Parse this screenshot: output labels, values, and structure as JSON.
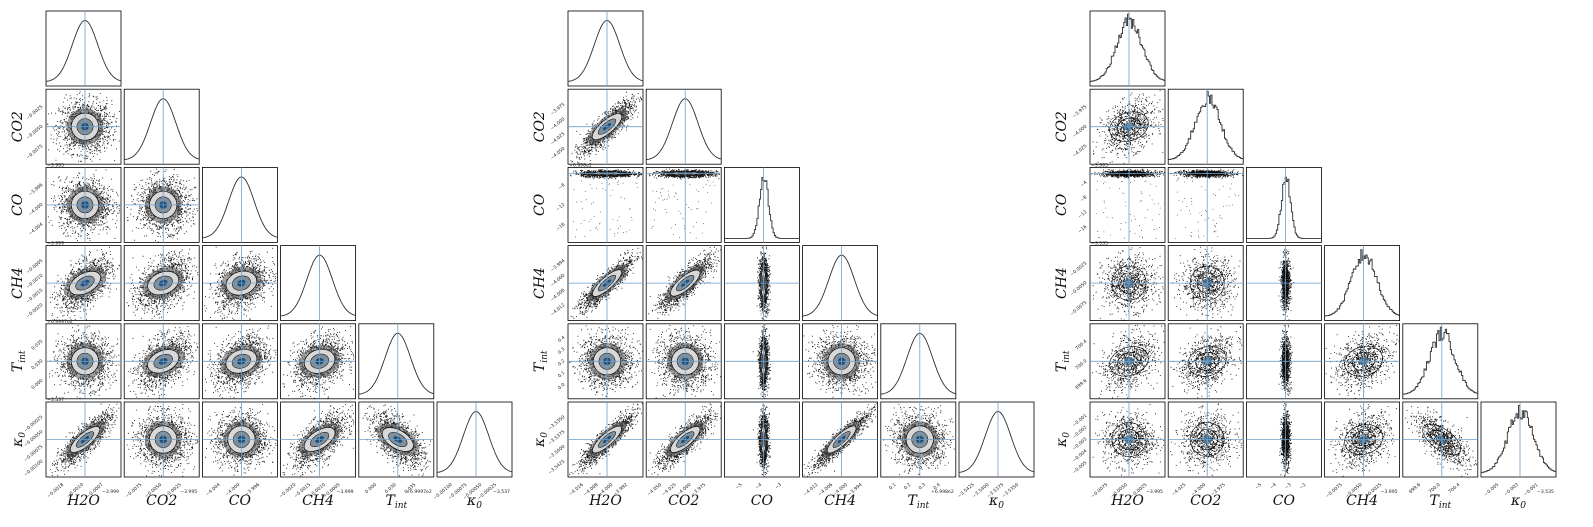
{
  "chart_data": [
    {
      "type": "corner",
      "variables": [
        "H2O",
        "CO2",
        "CO",
        "CH4",
        "T_int",
        "κ0"
      ],
      "truth_lines": true,
      "density_style": "dense",
      "hist_style": "smooth",
      "ticks": {
        "H2O": [
          "−0.0018",
          "−0.0010",
          "−0.0007"
        ],
        "CO2": [
          "−0.0075",
          "−0.0050",
          "−0.0025"
        ],
        "CO": [
          "−4.004",
          "−4.000",
          "−3.996"
        ],
        "CH4": [
          "−0.0020",
          "−0.0015",
          "−0.0010",
          "−0.0005"
        ],
        "T_int": [
          "0.000",
          "0.030",
          "0.035"
        ],
        "κ0": [
          "−0.00100",
          "−0.00075",
          "−0.00050",
          "−0.00025"
        ]
      },
      "offsets": {
        "H2O": "−3.999",
        "CO2": "−3.995",
        "CH4": "−3.999",
        "T_int": "+6.9997e2",
        "κ0": "−3.537"
      },
      "correlations": [
        [
          0.0
        ],
        [
          0.0,
          0.0
        ],
        [
          0.55,
          0.4,
          0.3
        ],
        [
          0.0,
          0.45,
          0.35,
          0.3
        ],
        [
          0.85,
          0.0,
          0.0,
          0.65,
          -0.6
        ]
      ],
      "corner_offsets_left": [
        "−3.995",
        "−3.999",
        "+6.9997e2",
        "−3.537"
      ]
    },
    {
      "type": "corner",
      "variables": [
        "H2O",
        "CO2",
        "CO",
        "CH4",
        "T_int",
        "κ0"
      ],
      "truth_lines": true,
      "density_style": "dense",
      "hist_style": "smooth",
      "ticks": {
        "H2O": [
          "−4.016",
          "−4.008",
          "−4.000",
          "−3.992"
        ],
        "CO2": [
          "−4.050",
          "−4.025",
          "−4.000",
          "−3.975"
        ],
        "CO": [
          "−5",
          "−4",
          "−3"
        ],
        "CH4": [
          "−4.012",
          "−4.006",
          "−4.000",
          "−3.994"
        ],
        "T_int": [
          "0.1",
          "0.2",
          "0.3",
          "0.4"
        ],
        "κ0": [
          "−3.5425",
          "−3.5400",
          "−3.5375",
          "−3.5350"
        ]
      },
      "ticks_y": {
        "CO2": [
          "−3.975",
          "−4.000",
          "−4.025",
          "−4.050"
        ],
        "CO": [
          "−8",
          "−12",
          "−16"
        ],
        "CH4": [
          "−3.994",
          "−4.000",
          "−4.006",
          "−4.012"
        ],
        "T_int": [
          "0.4",
          "0.3",
          "0.2",
          "0.1",
          "0.0"
        ],
        "κ0": [
          "−3.5350",
          "−3.5375",
          "−3.5400",
          "−3.5425"
        ]
      },
      "offsets": {
        "T_int": "+6.998e2"
      },
      "corner_offsets_left": [
        "+6.998e2"
      ],
      "correlations": [
        [
          0.85
        ],
        [
          0.0,
          0.0
        ],
        [
          0.9,
          0.85,
          0.0
        ],
        [
          0.0,
          0.0,
          0.0,
          0.0
        ],
        [
          0.9,
          0.85,
          0.0,
          0.92,
          0.0
        ]
      ],
      "co_column": "narrow"
    },
    {
      "type": "corner",
      "variables": [
        "H2O",
        "CO2",
        "CO",
        "CH4",
        "T_int",
        "κ0"
      ],
      "truth_lines": true,
      "density_style": "sparse",
      "hist_style": "step",
      "ticks": {
        "H2O": [
          "−0.0075",
          "−0.0050",
          "−0.0025"
        ],
        "CO2": [
          "−4.025",
          "−4.000",
          "−3.975"
        ],
        "CO": [
          "−5",
          "−4",
          "−3",
          "−2"
        ],
        "CH4": [
          "−0.0075",
          "−0.0050",
          "−0.0025"
        ],
        "T_int": [
          "699.6",
          "700.0",
          "700.4"
        ],
        "κ0": [
          "−0.005",
          "−0.003",
          "−0.001"
        ]
      },
      "ticks_y": {
        "CO2": [
          "−3.975",
          "−4.000",
          "−4.025"
        ],
        "CO": [
          "−4",
          "−8",
          "−12",
          "−16"
        ],
        "CH4": [
          "−0.0025",
          "−0.0050",
          "−0.0075"
        ],
        "T_int": [
          "700.4",
          "700.0",
          "699.6"
        ],
        "κ0": [
          "−0.001",
          "−0.002",
          "−0.003",
          "−0.004",
          "−0.005"
        ]
      },
      "offsets": {
        "H2O": "−3.995",
        "CH4": "−3.995",
        "κ0": "−3.535"
      },
      "corner_offsets_left": [
        "−3.995",
        "−3.535"
      ],
      "correlations": [
        [
          0.35
        ],
        [
          0.0,
          0.0
        ],
        [
          0.0,
          0.0,
          0.0
        ],
        [
          0.35,
          0.3,
          0.0,
          0.3
        ],
        [
          0.0,
          0.0,
          0.0,
          0.3,
          -0.7
        ]
      ],
      "co_column": "narrow"
    }
  ]
}
